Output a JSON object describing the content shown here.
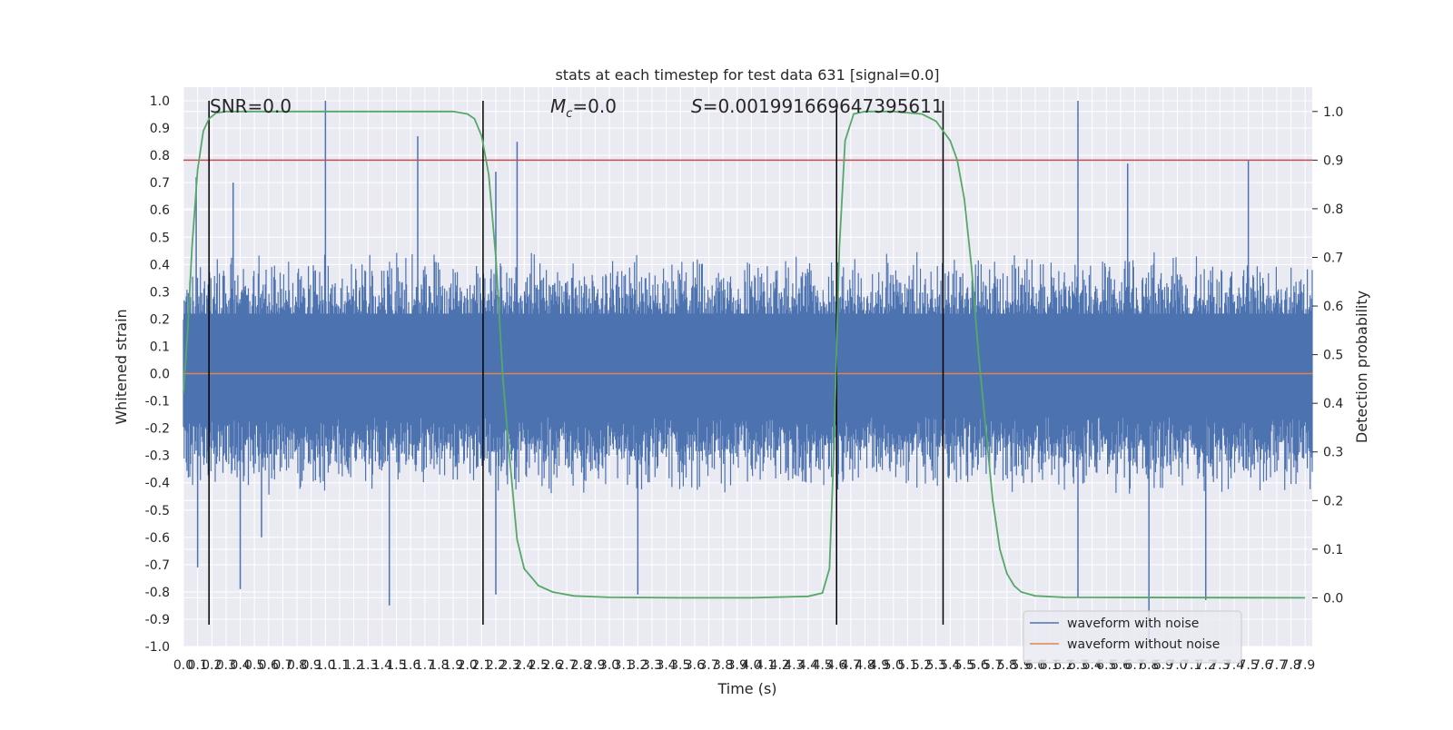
{
  "chart_data": {
    "type": "line",
    "title": "stats at each timestep for test data 631 [signal=0.0]",
    "xlabel": "Time (s)",
    "ylabel": "Whitened strain",
    "ylabel_right": "Detection probability",
    "xlim": [
      0.0,
      7.95
    ],
    "ylim": [
      -1.0,
      1.05
    ],
    "ylim_right": [
      -0.1,
      1.05
    ],
    "x_ticks": [
      0.0,
      0.1,
      0.2,
      0.3,
      0.4,
      0.5,
      0.6,
      0.7,
      0.8,
      0.9,
      1.0,
      1.1,
      1.2,
      1.3,
      1.4,
      1.5,
      1.6,
      1.7,
      1.8,
      1.9,
      2.0,
      2.1,
      2.2,
      2.3,
      2.4,
      2.5,
      2.6,
      2.7,
      2.8,
      2.9,
      3.0,
      3.1,
      3.2,
      3.3,
      3.4,
      3.5,
      3.6,
      3.7,
      3.8,
      3.9,
      4.0,
      4.1,
      4.2,
      4.3,
      4.4,
      4.5,
      4.6,
      4.7,
      4.8,
      4.9,
      5.0,
      5.1,
      5.2,
      5.3,
      5.4,
      5.5,
      5.6,
      5.7,
      5.8,
      5.9,
      6.0,
      6.1,
      6.2,
      6.3,
      6.4,
      6.5,
      6.6,
      6.7,
      6.8,
      6.9,
      7.0,
      7.1,
      7.2,
      7.3,
      7.4,
      7.5,
      7.6,
      7.7,
      7.8,
      7.9
    ],
    "y_ticks": [
      -1.0,
      -0.9,
      -0.8,
      -0.7,
      -0.6,
      -0.5,
      -0.4,
      -0.3,
      -0.2,
      -0.1,
      0.0,
      0.1,
      0.2,
      0.3,
      0.4,
      0.5,
      0.6,
      0.7,
      0.8,
      0.9,
      1.0
    ],
    "y_ticks_right": [
      0.0,
      0.1,
      0.2,
      0.3,
      0.4,
      0.5,
      0.6,
      0.7,
      0.8,
      0.9,
      1.0
    ],
    "grid": true,
    "legend_position": "bottom-right",
    "annotations": {
      "snr": "SNR=0.0",
      "mc_symbol": "M",
      "mc_subscript": "c",
      "mc_value": "=0.0",
      "s_symbol": "S",
      "s_value": "=0.001991669647395611"
    },
    "series": [
      {
        "name": "waveform with noise",
        "color": "#4c72b0",
        "envelope_description": "dense noise; typical amplitude ±0.45",
        "noise_amplitude": 0.45,
        "peaks": [
          {
            "x": 0.09,
            "y": 0.72
          },
          {
            "x": 0.35,
            "y": 0.7
          },
          {
            "x": 1.0,
            "y": 1.0
          },
          {
            "x": 1.65,
            "y": 0.87
          },
          {
            "x": 2.2,
            "y": 0.74
          },
          {
            "x": 2.35,
            "y": 0.85
          },
          {
            "x": 6.3,
            "y": 1.0
          },
          {
            "x": 6.65,
            "y": 0.77
          },
          {
            "x": 7.5,
            "y": 0.78
          },
          {
            "x": 0.1,
            "y": -0.71
          },
          {
            "x": 0.4,
            "y": -0.79
          },
          {
            "x": 1.45,
            "y": -0.85
          },
          {
            "x": 2.2,
            "y": -0.81
          },
          {
            "x": 3.2,
            "y": -0.81
          },
          {
            "x": 6.3,
            "y": -0.82
          },
          {
            "x": 6.8,
            "y": -0.99
          },
          {
            "x": 7.2,
            "y": -0.83
          },
          {
            "x": 0.55,
            "y": -0.6
          }
        ]
      },
      {
        "name": "waveform without noise",
        "color": "#dd8452",
        "x": [
          0.0,
          7.95
        ],
        "y": [
          0.0,
          0.0
        ]
      },
      {
        "name": "detection probability",
        "axis": "right",
        "color": "#55a868",
        "x": [
          0.0,
          0.03,
          0.06,
          0.1,
          0.14,
          0.18,
          0.23,
          0.3,
          0.4,
          0.6,
          1.0,
          1.5,
          1.9,
          2.0,
          2.05,
          2.1,
          2.15,
          2.2,
          2.25,
          2.3,
          2.35,
          2.4,
          2.5,
          2.6,
          2.75,
          3.0,
          3.5,
          4.0,
          4.4,
          4.5,
          4.55,
          4.58,
          4.62,
          4.66,
          4.72,
          4.8,
          5.0,
          5.2,
          5.3,
          5.4,
          5.45,
          5.5,
          5.55,
          5.6,
          5.65,
          5.7,
          5.75,
          5.8,
          5.85,
          5.9,
          6.0,
          6.2,
          7.9
        ],
        "y": [
          0.42,
          0.55,
          0.72,
          0.88,
          0.96,
          0.985,
          0.997,
          1.0,
          1.0,
          1.0,
          1.0,
          1.0,
          1.0,
          0.995,
          0.985,
          0.95,
          0.87,
          0.7,
          0.45,
          0.28,
          0.12,
          0.06,
          0.025,
          0.012,
          0.004,
          0.001,
          0.0,
          0.0,
          0.003,
          0.01,
          0.06,
          0.3,
          0.72,
          0.94,
          0.995,
          1.0,
          1.0,
          0.995,
          0.98,
          0.94,
          0.9,
          0.82,
          0.68,
          0.5,
          0.35,
          0.2,
          0.1,
          0.05,
          0.025,
          0.012,
          0.004,
          0.001,
          0.0
        ]
      }
    ],
    "threshold": {
      "axis": "right",
      "value": 0.9,
      "color": "#c44e52"
    },
    "event_lines": [
      {
        "x": 0.18,
        "y_from": -0.92,
        "y_to": 1.0
      },
      {
        "x": 2.11,
        "y_from": -0.92,
        "y_to": 1.0
      },
      {
        "x": 4.6,
        "y_from": -0.92,
        "y_to": 1.0
      },
      {
        "x": 5.35,
        "y_from": -0.92,
        "y_to": 1.0
      }
    ]
  }
}
